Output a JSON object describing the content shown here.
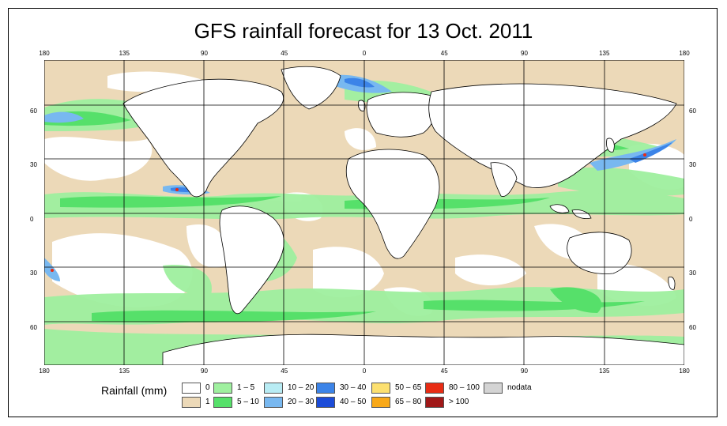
{
  "title": "GFS rainfall forecast for 13 Oct. 2011",
  "x_ticks": [
    "180",
    "135",
    "90",
    "45",
    "0",
    "45",
    "90",
    "135",
    "180"
  ],
  "y_ticks": [
    "60",
    "30",
    "0",
    "30",
    "60"
  ],
  "legend": {
    "title": "Rainfall (mm)",
    "items": [
      {
        "label": "0",
        "color": "#ffffff"
      },
      {
        "label": "1",
        "color": "#ecd9b8"
      },
      {
        "label": "1 – 5",
        "color": "#9ff09f"
      },
      {
        "label": "5 – 10",
        "color": "#56e06a"
      },
      {
        "label": "10 – 20",
        "color": "#b8ecf4"
      },
      {
        "label": "20 – 30",
        "color": "#78b8f0"
      },
      {
        "label": "30 – 40",
        "color": "#3c84e8"
      },
      {
        "label": "40 – 50",
        "color": "#1c4cd8"
      },
      {
        "label": "50 – 65",
        "color": "#fce070"
      },
      {
        "label": "65 – 80",
        "color": "#f8a818"
      },
      {
        "label": "80 – 100",
        "color": "#e82c14"
      },
      {
        "label": "> 100",
        "color": "#a01818"
      },
      {
        "label": "nodata",
        "color": "#d4d4d4"
      }
    ]
  },
  "colors": {
    "ocean_base": "#ecd9b8",
    "green_light": "#9ff09f",
    "green": "#56e06a",
    "cyan": "#b8ecf4",
    "blue": "#78b8f0",
    "deep_blue": "#3c84e8",
    "red": "#e82c14"
  }
}
